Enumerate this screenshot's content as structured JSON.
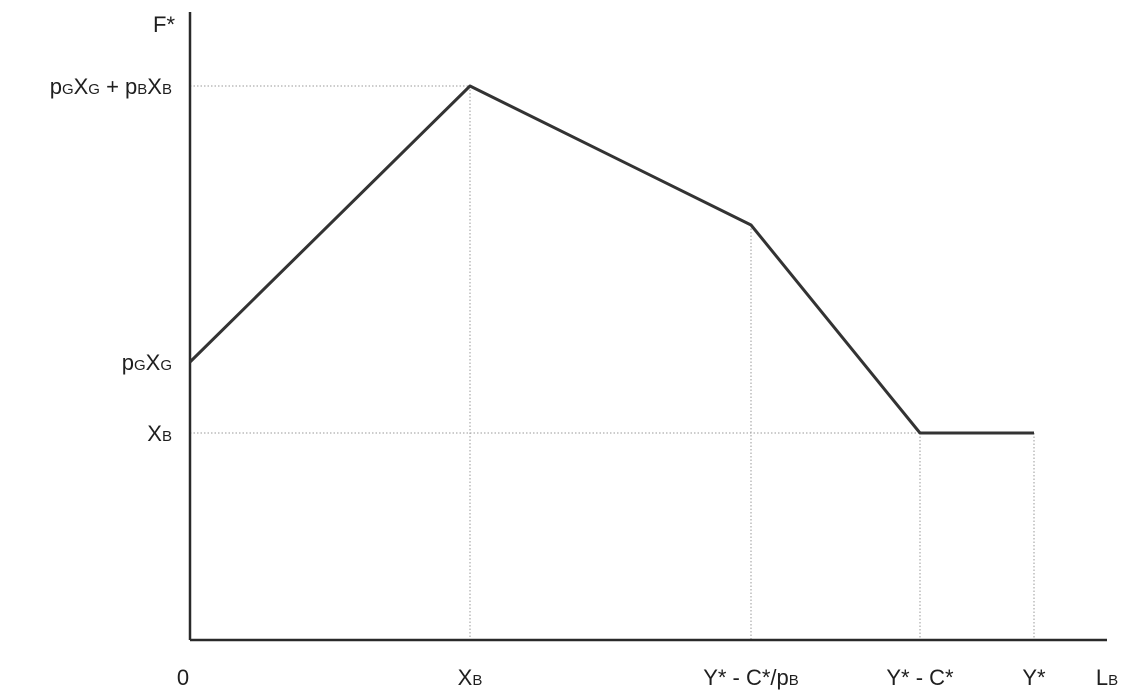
{
  "chart_data": {
    "type": "line",
    "title": "",
    "axes": {
      "y_label": {
        "main": "F*"
      },
      "x_label": {
        "main": "L",
        "sub": "B"
      }
    },
    "x_ticks": [
      {
        "parts": [
          [
            "0",
            ""
          ]
        ]
      },
      {
        "parts": [
          [
            "X",
            ""
          ],
          [
            "B",
            "sub"
          ]
        ]
      },
      {
        "parts": [
          [
            "Y* - C*/p",
            ""
          ],
          [
            "B",
            "sub"
          ]
        ]
      },
      {
        "parts": [
          [
            "Y* - C*",
            ""
          ]
        ]
      },
      {
        "parts": [
          [
            "Y*",
            ""
          ]
        ]
      }
    ],
    "y_ticks": [
      {
        "parts": [
          [
            "p",
            ""
          ],
          [
            "G",
            "sub"
          ],
          [
            "X",
            ""
          ],
          [
            "G",
            "sub"
          ],
          [
            " + p",
            ""
          ],
          [
            "B",
            "sub"
          ],
          [
            "X",
            ""
          ],
          [
            "B",
            "sub"
          ]
        ]
      },
      {
        "parts": [
          [
            "p",
            ""
          ],
          [
            "G",
            "sub"
          ],
          [
            "X",
            ""
          ],
          [
            "G",
            "sub"
          ]
        ]
      },
      {
        "parts": [
          [
            "X",
            ""
          ],
          [
            "B",
            "sub"
          ]
        ]
      }
    ],
    "series": [
      {
        "points": [
          [
            0,
            2.0
          ],
          [
            1,
            4.0
          ],
          [
            2,
            3.2
          ],
          [
            3,
            1.6
          ],
          [
            4,
            1.6
          ]
        ]
      }
    ],
    "grid": "dotted guide lines from the curve's kink points to both axes"
  }
}
